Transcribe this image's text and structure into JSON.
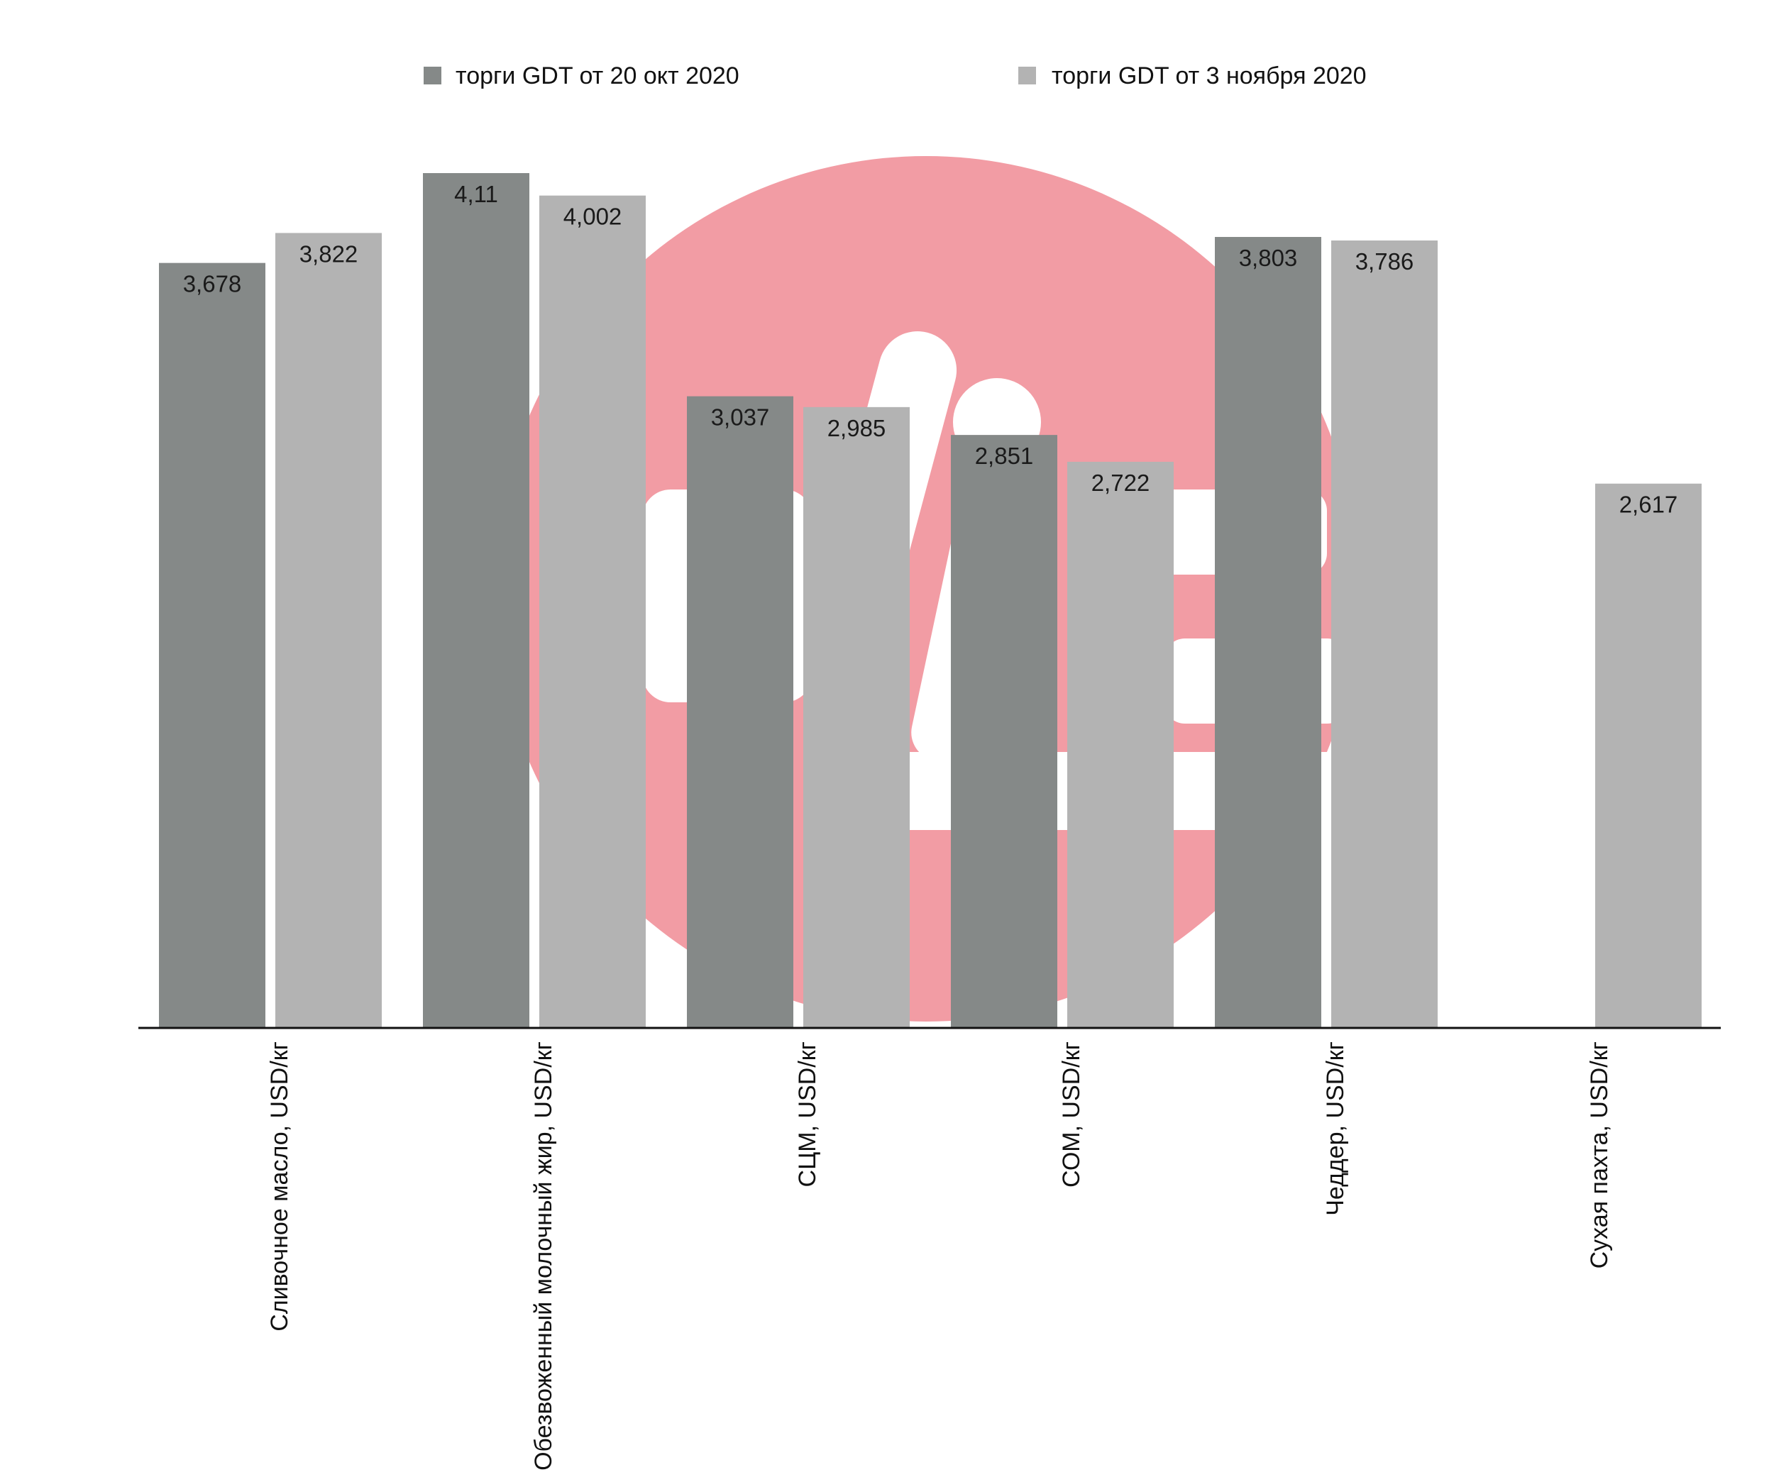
{
  "colors": {
    "series_1": "#858988",
    "series_2": "#b3b3b3",
    "watermark": "#f29ca4",
    "axis": "#111111"
  },
  "watermark": {
    "icon": "logo-watermark"
  },
  "chart_data": {
    "type": "bar",
    "title": "",
    "xlabel": "",
    "ylabel": "",
    "ylim": [
      0,
      4.11
    ],
    "grid": false,
    "legend_position": "top",
    "categories": [
      "Сливочное масло, USD/кг",
      "Обезвоженный молочный жир, USD/кг",
      "СЦМ, USD/кг",
      "СОМ, USD/кг",
      "Чеддер, USD/кг",
      "Сухая пахта, USD/кг"
    ],
    "series": [
      {
        "name": "торги GDT от 20 окт 2020",
        "values": [
          3.678,
          4.11,
          3.037,
          2.851,
          3.803,
          null
        ],
        "labels": [
          "3,678",
          "4,11",
          "3,037",
          "2,851",
          "3,803",
          ""
        ]
      },
      {
        "name": "торги GDT от 3 ноября 2020",
        "values": [
          3.822,
          4.002,
          2.985,
          2.722,
          3.786,
          2.617
        ],
        "labels": [
          "3,822",
          "4,002",
          "2,985",
          "2,722",
          "3,786",
          "2,617"
        ]
      }
    ]
  }
}
